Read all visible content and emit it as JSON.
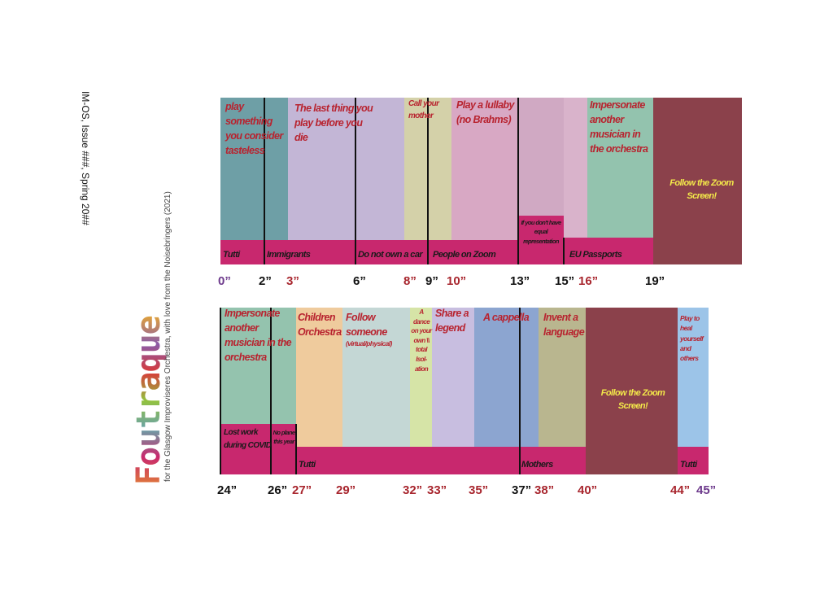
{
  "header": {
    "issue": "IM-OS, Issue ###, Spring 20##",
    "logo": "Foutraque",
    "dedication": "for the Glasgow Improviseres Orchestra, with love from the Noisebringers (2021)"
  },
  "rows": [
    {
      "blocks": [
        "play something you consider tasteless",
        "The last thing you play before you die",
        "Call your mother",
        "Play a lullaby (no Brahms)",
        "Impersonate another musician in the orchestra",
        "Follow the Zoom Screen!"
      ],
      "bands": [
        "Tutti",
        "Immigrants",
        "Do not own a car",
        "People on Zoom",
        "If you don't have equal representation",
        "EU Passports"
      ],
      "times": [
        "0”",
        "2”",
        "3”",
        "6”",
        "8”",
        "9”",
        "10”",
        "13”",
        "15”",
        "16”",
        "19”"
      ]
    },
    {
      "blocks": [
        "Impersonate another musician in the orchestra",
        "Children Orchestra",
        "Follow someone",
        "A dance on your own \\\\ total Isol-ation",
        "Share a legend",
        "A cappella",
        "Invent a language",
        "Follow the Zoom Screen!",
        "Play to heal yourself and others"
      ],
      "note": "(virtual/physical)",
      "bands": [
        "Lost work during COVID",
        "No plane this year",
        "Tutti",
        "Mothers",
        "Tutti"
      ],
      "times": [
        "24”",
        "26”",
        "27”",
        "29”",
        "32”",
        "33”",
        "35”",
        "37”",
        "38”",
        "40”",
        "44”",
        "45”"
      ]
    }
  ]
}
